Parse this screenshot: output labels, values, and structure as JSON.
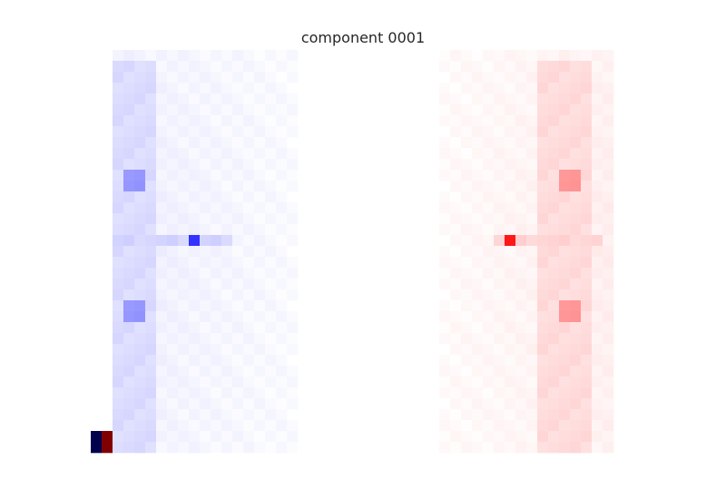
{
  "chart_data": {
    "type": "heatmap",
    "title": "component 0001",
    "colormap": "seismic",
    "axes_visible": false,
    "grid": false,
    "rows": 37,
    "cols": 52,
    "vmin": -1,
    "vmax": 1,
    "features": [
      {
        "kind": "lobe",
        "sign": -1,
        "col_range": [
          2,
          18
        ],
        "row_range": [
          0,
          36
        ],
        "base_value": 0.04
      },
      {
        "kind": "lobe",
        "sign": 1,
        "col_range": [
          32,
          47
        ],
        "row_range": [
          0,
          36
        ],
        "base_value": 0.04
      },
      {
        "kind": "column",
        "sign": -1,
        "col_range": [
          2,
          5
        ],
        "row_range": [
          1,
          36
        ],
        "value": 0.12
      },
      {
        "kind": "column",
        "sign": 1,
        "col_range": [
          41,
          45
        ],
        "row_range": [
          1,
          36
        ],
        "value": 0.12
      },
      {
        "kind": "blob",
        "sign": -1,
        "col_range": [
          3,
          4
        ],
        "row_range": [
          11,
          12
        ],
        "value": 0.32
      },
      {
        "kind": "blob",
        "sign": -1,
        "col_range": [
          3,
          4
        ],
        "row_range": [
          23,
          24
        ],
        "value": 0.32
      },
      {
        "kind": "blob",
        "sign": 1,
        "col_range": [
          43,
          44
        ],
        "row_range": [
          11,
          12
        ],
        "value": 0.32
      },
      {
        "kind": "blob",
        "sign": 1,
        "col_range": [
          43,
          44
        ],
        "row_range": [
          23,
          24
        ],
        "value": 0.32
      },
      {
        "kind": "band",
        "sign": -1,
        "col_range": [
          2,
          12
        ],
        "row_range": [
          17,
          17
        ],
        "value": 0.14
      },
      {
        "kind": "band",
        "sign": 1,
        "col_range": [
          37,
          46
        ],
        "row_range": [
          17,
          17
        ],
        "value": 0.14
      },
      {
        "kind": "cell",
        "sign": -1,
        "col": 9,
        "row": 17,
        "value": 0.6
      },
      {
        "kind": "cell",
        "sign": 1,
        "col": 38,
        "row": 17,
        "value": 0.68
      },
      {
        "kind": "cell",
        "sign": -1,
        "col": 0,
        "row": 35,
        "value": 1.0
      },
      {
        "kind": "cell",
        "sign": -1,
        "col": 0,
        "row": 36,
        "value": 1.0
      },
      {
        "kind": "cell",
        "sign": 1,
        "col": 1,
        "row": 35,
        "value": 1.0
      },
      {
        "kind": "cell",
        "sign": 1,
        "col": 1,
        "row": 36,
        "value": 1.0
      }
    ]
  }
}
